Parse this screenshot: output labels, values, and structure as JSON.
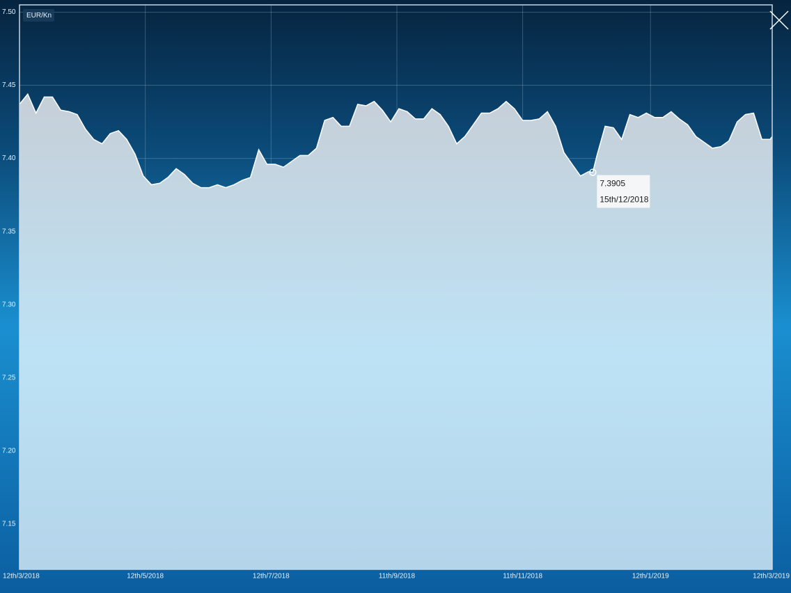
{
  "chart_data": {
    "type": "area",
    "legend_label": "EUR/Kn",
    "x": [
      "2018-03-12",
      "2018-03-16",
      "2018-03-20",
      "2018-03-24",
      "2018-03-28",
      "2018-04-01",
      "2018-04-05",
      "2018-04-09",
      "2018-04-13",
      "2018-04-17",
      "2018-04-21",
      "2018-04-25",
      "2018-04-29",
      "2018-05-03",
      "2018-05-07",
      "2018-05-11",
      "2018-05-15",
      "2018-05-19",
      "2018-05-23",
      "2018-05-27",
      "2018-05-31",
      "2018-06-04",
      "2018-06-08",
      "2018-06-12",
      "2018-06-16",
      "2018-06-20",
      "2018-06-24",
      "2018-06-28",
      "2018-07-02",
      "2018-07-06",
      "2018-07-10",
      "2018-07-14",
      "2018-07-18",
      "2018-07-22",
      "2018-07-26",
      "2018-07-30",
      "2018-08-03",
      "2018-08-07",
      "2018-08-11",
      "2018-08-15",
      "2018-08-19",
      "2018-08-23",
      "2018-08-27",
      "2018-08-31",
      "2018-09-04",
      "2018-09-08",
      "2018-09-12",
      "2018-09-16",
      "2018-09-20",
      "2018-09-24",
      "2018-09-28",
      "2018-10-02",
      "2018-10-06",
      "2018-10-10",
      "2018-10-14",
      "2018-10-18",
      "2018-10-22",
      "2018-10-26",
      "2018-10-30",
      "2018-11-03",
      "2018-11-07",
      "2018-11-11",
      "2018-11-15",
      "2018-11-19",
      "2018-11-23",
      "2018-11-27",
      "2018-12-01",
      "2018-12-05",
      "2018-12-09",
      "2018-12-13",
      "2018-12-15",
      "2018-12-17",
      "2018-12-21",
      "2018-12-25",
      "2018-12-29",
      "2019-01-02",
      "2019-01-06",
      "2019-01-10",
      "2019-01-14",
      "2019-01-18",
      "2019-01-22",
      "2019-01-26",
      "2019-01-30",
      "2019-02-03",
      "2019-02-07",
      "2019-02-11",
      "2019-02-15",
      "2019-02-19",
      "2019-02-23",
      "2019-02-27",
      "2019-03-03",
      "2019-03-07",
      "2019-03-11",
      "2019-03-12"
    ],
    "values": [
      7.437,
      7.444,
      7.431,
      7.442,
      7.442,
      7.433,
      7.432,
      7.43,
      7.42,
      7.413,
      7.41,
      7.417,
      7.419,
      7.413,
      7.403,
      7.388,
      7.382,
      7.383,
      7.387,
      7.393,
      7.389,
      7.383,
      7.38,
      7.38,
      7.382,
      7.38,
      7.382,
      7.385,
      7.387,
      7.406,
      7.396,
      7.396,
      7.394,
      7.398,
      7.402,
      7.402,
      7.407,
      7.426,
      7.428,
      7.422,
      7.422,
      7.437,
      7.436,
      7.439,
      7.433,
      7.425,
      7.434,
      7.432,
      7.427,
      7.427,
      7.434,
      7.43,
      7.422,
      7.41,
      7.415,
      7.423,
      7.431,
      7.431,
      7.434,
      7.439,
      7.434,
      7.426,
      7.426,
      7.427,
      7.432,
      7.422,
      7.404,
      7.396,
      7.388,
      7.391,
      7.3905,
      7.402,
      7.422,
      7.421,
      7.413,
      7.43,
      7.428,
      7.431,
      7.428,
      7.428,
      7.432,
      7.427,
      7.423,
      7.415,
      7.411,
      7.407,
      7.408,
      7.412,
      7.425,
      7.43,
      7.431,
      7.413,
      7.413,
      7.415
    ],
    "color": "#ffffff",
    "xlim": [
      "2018-03-12",
      "2019-03-12"
    ],
    "xticks": [
      {
        "value": "2018-03-12",
        "label": "12th/3/2018"
      },
      {
        "value": "2018-05-12",
        "label": "12th/5/2018"
      },
      {
        "value": "2018-07-12",
        "label": "12th/7/2018"
      },
      {
        "value": "2018-09-11",
        "label": "11th/9/2018"
      },
      {
        "value": "2018-11-11",
        "label": "11th/11/2018"
      },
      {
        "value": "2019-01-12",
        "label": "12th/1/2019"
      },
      {
        "value": "2019-03-12",
        "label": "12th/3/2019"
      }
    ],
    "ylim": [
      7.119,
      7.505
    ],
    "yticks": [
      7.15,
      {
        "value": 7.2,
        "label": "7.20"
      },
      7.25,
      {
        "value": 7.3,
        "label": "7.30"
      },
      7.35,
      {
        "value": 7.4,
        "label": "7.40"
      },
      7.45,
      {
        "value": 7.5,
        "label": "7.50"
      }
    ],
    "grid": true,
    "tooltip": {
      "x": {
        "value": "2018-12-15",
        "label": "15th/12/2018"
      },
      "y": 7.3905
    }
  }
}
